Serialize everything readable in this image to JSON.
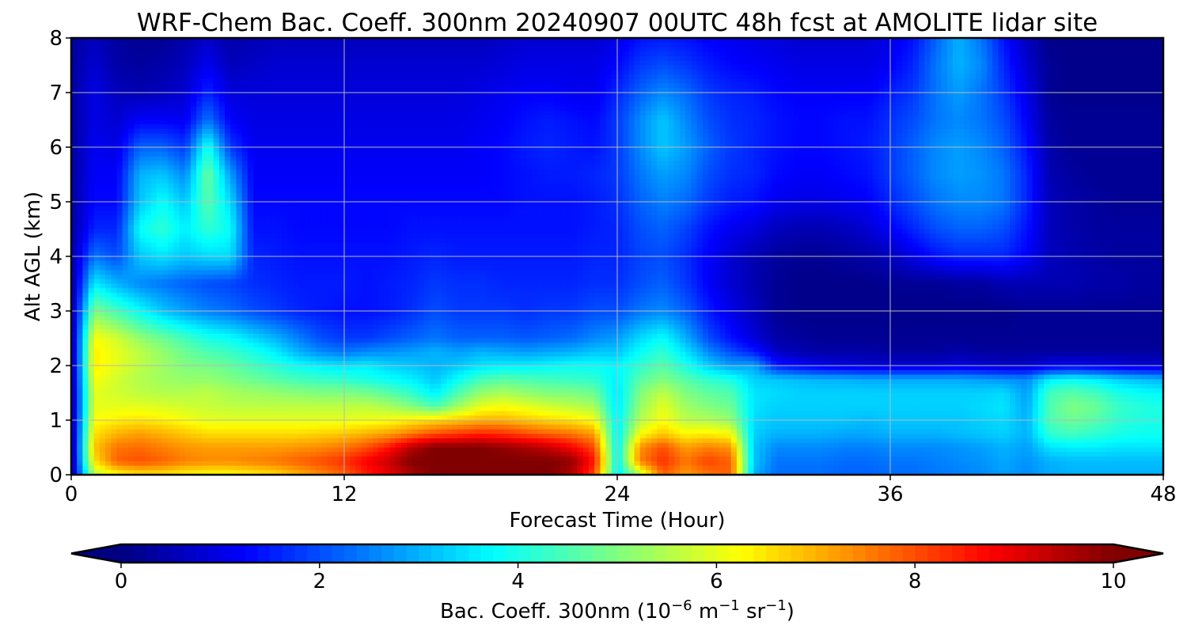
{
  "chart_data": {
    "type": "heatmap",
    "title": "WRF-Chem Bac. Coeff. 300nm  20240907 00UTC 48h fcst at AMOLITE lidar site",
    "xlabel": "Forecast Time (Hour)",
    "ylabel": "Alt AGL (km)",
    "xlim": [
      0,
      48
    ],
    "ylim": [
      0,
      8
    ],
    "xticks": [
      "0",
      "12",
      "24",
      "36",
      "48"
    ],
    "yticks": [
      "0",
      "1",
      "2",
      "3",
      "4",
      "5",
      "6",
      "7",
      "8"
    ],
    "grid": true,
    "colormap": "jet",
    "colorbar": {
      "label_main": "Bac. Coeff. 300nm  (10",
      "label_exp1": "−6",
      "label_mid": " m",
      "label_exp2": "−1",
      "label_mid2": " sr",
      "label_exp3": "−1",
      "label_end": ")",
      "min": 0,
      "max": 10,
      "ticks": [
        "0",
        "2",
        "4",
        "6",
        "8",
        "10"
      ],
      "extend": "both"
    },
    "altitudes_km": [
      0,
      0.25,
      0.5,
      0.75,
      1,
      1.25,
      1.5,
      1.75,
      2,
      2.25,
      2.5,
      3,
      3.5,
      4,
      4.5,
      5,
      5.5,
      6,
      6.5,
      7,
      7.5,
      8
    ],
    "hours": [
      0,
      1,
      2,
      3,
      4,
      5,
      6,
      7,
      8,
      9,
      10,
      11,
      12,
      13,
      14,
      15,
      16,
      17,
      18,
      19,
      20,
      21,
      22,
      23,
      24,
      25,
      26,
      27,
      28,
      29,
      30,
      31,
      32,
      33,
      34,
      35,
      36,
      37,
      38,
      39,
      40,
      41,
      42,
      43,
      44,
      45,
      46,
      47,
      48
    ],
    "values": [
      [
        0.2,
        5.5,
        6.2,
        6.5,
        6.5,
        6.3,
        6.2,
        6.2,
        6.4,
        6.6,
        7.0,
        7.4,
        7.8,
        8.5,
        9.0,
        9.6,
        10.0,
        10.0,
        10.0,
        10.0,
        10.0,
        10.0,
        9.5,
        8.0,
        3.5,
        5.5,
        7.8,
        7.2,
        7.6,
        7.8,
        3.0,
        2.3,
        2.3,
        2.3,
        2.2,
        2.2,
        2.3,
        2.3,
        2.4,
        2.5,
        2.6,
        2.8,
        2.6,
        2.9,
        3.0,
        3.0,
        3.0,
        3.0,
        3.0
      ],
      [
        0.2,
        6.5,
        7.8,
        8.0,
        7.8,
        7.5,
        7.4,
        7.4,
        7.5,
        7.6,
        7.8,
        8.0,
        8.3,
        8.8,
        9.3,
        10.0,
        10.0,
        10.0,
        10.0,
        10.0,
        10.0,
        10.0,
        9.8,
        8.5,
        3.6,
        7.5,
        8.3,
        7.6,
        8.1,
        7.8,
        3.2,
        2.4,
        2.4,
        2.4,
        2.3,
        2.3,
        2.4,
        2.4,
        2.5,
        2.6,
        2.7,
        2.9,
        2.7,
        3.0,
        3.1,
        3.1,
        3.1,
        3.1,
        3.1
      ],
      [
        0.2,
        6.8,
        7.6,
        7.7,
        7.5,
        7.3,
        7.2,
        7.2,
        7.2,
        7.2,
        7.3,
        7.4,
        7.6,
        8.0,
        8.6,
        9.5,
        10.0,
        10.0,
        10.0,
        9.8,
        9.6,
        9.3,
        8.8,
        8.0,
        3.6,
        7.3,
        8.0,
        7.2,
        7.5,
        7.3,
        3.2,
        2.6,
        2.6,
        2.6,
        2.5,
        2.5,
        2.6,
        2.6,
        2.6,
        2.7,
        2.8,
        3.0,
        2.8,
        3.5,
        3.6,
        3.6,
        3.5,
        3.5,
        3.5
      ],
      [
        0.2,
        6.5,
        7.0,
        7.2,
        7.0,
        6.8,
        6.6,
        6.6,
        6.6,
        6.6,
        6.6,
        6.7,
        6.8,
        7.0,
        7.2,
        7.6,
        8.0,
        8.2,
        8.4,
        8.3,
        8.0,
        7.8,
        7.6,
        7.2,
        3.6,
        6.2,
        6.8,
        6.3,
        6.4,
        6.2,
        3.3,
        3.0,
        3.0,
        3.0,
        2.9,
        2.9,
        3.0,
        3.0,
        3.0,
        3.1,
        3.2,
        3.3,
        3.0,
        4.2,
        4.4,
        4.2,
        4.0,
        3.9,
        3.9
      ],
      [
        0.2,
        6.2,
        6.4,
        6.5,
        6.4,
        6.2,
        6.0,
        6.0,
        6.0,
        6.0,
        6.0,
        6.0,
        6.0,
        6.1,
        6.2,
        6.4,
        6.6,
        6.8,
        7.0,
        7.0,
        6.8,
        6.6,
        6.5,
        6.2,
        3.6,
        5.5,
        6.2,
        5.6,
        5.5,
        5.2,
        3.4,
        3.2,
        3.2,
        3.2,
        3.2,
        3.1,
        3.2,
        3.2,
        3.2,
        3.2,
        3.3,
        3.4,
        3.0,
        4.5,
        4.8,
        4.6,
        4.2,
        4.0,
        4.0
      ],
      [
        0.2,
        6.0,
        6.0,
        6.0,
        5.9,
        5.8,
        5.7,
        5.6,
        5.6,
        5.6,
        5.6,
        5.6,
        5.6,
        5.6,
        5.4,
        5.0,
        4.5,
        5.3,
        6.0,
        6.2,
        6.0,
        5.8,
        5.6,
        5.4,
        3.5,
        5.2,
        6.0,
        5.3,
        5.0,
        4.8,
        3.5,
        3.3,
        3.3,
        3.3,
        3.3,
        3.3,
        3.3,
        3.3,
        3.3,
        3.3,
        3.4,
        3.5,
        2.9,
        4.5,
        5.0,
        4.8,
        4.3,
        4.1,
        4.0
      ],
      [
        0.2,
        6.0,
        5.8,
        5.6,
        5.5,
        5.5,
        5.6,
        5.4,
        5.3,
        5.2,
        5.1,
        5.0,
        5.0,
        4.9,
        4.6,
        4.2,
        3.6,
        4.5,
        5.2,
        5.4,
        5.2,
        5.0,
        5.0,
        4.8,
        3.5,
        5.0,
        5.6,
        5.0,
        4.7,
        4.5,
        3.5,
        3.4,
        3.3,
        3.3,
        3.3,
        3.3,
        3.3,
        3.3,
        3.3,
        3.3,
        3.3,
        3.4,
        2.8,
        4.4,
        4.6,
        4.4,
        4.0,
        3.8,
        3.7
      ],
      [
        0.2,
        6.2,
        5.8,
        5.5,
        5.3,
        5.2,
        5.2,
        5.0,
        4.8,
        4.6,
        4.4,
        4.3,
        4.2,
        4.0,
        3.8,
        3.6,
        3.2,
        3.8,
        4.4,
        4.6,
        4.5,
        4.4,
        4.3,
        4.2,
        3.6,
        4.6,
        5.0,
        4.6,
        4.2,
        4.0,
        3.3,
        3.2,
        3.1,
        3.0,
        3.0,
        2.9,
        2.9,
        2.9,
        2.9,
        2.9,
        2.8,
        2.7,
        2.6,
        3.6,
        3.8,
        3.6,
        3.3,
        3.1,
        3.0
      ],
      [
        0.2,
        6.4,
        6.0,
        5.6,
        5.3,
        5.0,
        4.9,
        4.7,
        4.4,
        4.1,
        3.8,
        3.6,
        3.5,
        3.6,
        3.3,
        3.2,
        3.0,
        3.2,
        3.5,
        3.6,
        3.6,
        3.7,
        3.8,
        3.8,
        3.7,
        4.2,
        4.6,
        4.0,
        3.3,
        2.8,
        2.9,
        1.5,
        1.2,
        1.0,
        0.9,
        0.8,
        0.8,
        0.8,
        0.8,
        0.9,
        0.8,
        0.7,
        0.7,
        1.0,
        1.1,
        1.0,
        0.9,
        0.8,
        0.8
      ],
      [
        0.2,
        6.4,
        6.0,
        5.6,
        5.2,
        4.8,
        4.5,
        4.3,
        4.0,
        3.6,
        3.0,
        2.6,
        2.4,
        2.6,
        2.7,
        2.8,
        3.0,
        2.8,
        3.0,
        2.9,
        2.8,
        2.9,
        3.0,
        3.2,
        3.2,
        3.8,
        4.2,
        3.5,
        2.6,
        2.0,
        1.5,
        0.7,
        0.5,
        0.4,
        0.4,
        0.4,
        0.3,
        0.3,
        0.3,
        0.4,
        0.3,
        0.3,
        0.3,
        0.3,
        0.3,
        0.3,
        0.3,
        0.3,
        0.3
      ],
      [
        0.2,
        6.2,
        5.8,
        5.2,
        4.8,
        4.4,
        4.0,
        3.8,
        3.4,
        3.0,
        2.5,
        2.0,
        1.8,
        1.8,
        2.0,
        2.2,
        2.4,
        2.2,
        2.2,
        2.2,
        2.1,
        2.2,
        2.3,
        2.6,
        2.8,
        3.4,
        3.8,
        3.0,
        2.0,
        1.4,
        0.9,
        0.4,
        0.3,
        0.2,
        0.2,
        0.2,
        0.2,
        0.2,
        0.2,
        0.2,
        0.2,
        0.2,
        0.2,
        0.2,
        0.2,
        0.2,
        0.2,
        0.2,
        0.2
      ],
      [
        0.2,
        5.0,
        4.4,
        3.8,
        3.2,
        2.8,
        2.5,
        2.3,
        2.0,
        1.8,
        1.6,
        1.5,
        1.4,
        1.4,
        1.5,
        1.7,
        2.0,
        1.8,
        1.8,
        1.8,
        1.7,
        1.8,
        1.8,
        2.0,
        2.0,
        2.4,
        2.6,
        2.2,
        1.5,
        1.0,
        0.6,
        0.2,
        0.1,
        0.1,
        0.1,
        0.1,
        0.1,
        0.1,
        0.1,
        0.1,
        0.1,
        0.1,
        0.2,
        0.2,
        0.2,
        0.2,
        0.2,
        0.2,
        0.2
      ],
      [
        0.2,
        3.6,
        3.0,
        2.6,
        2.4,
        2.2,
        2.0,
        1.9,
        1.7,
        1.6,
        1.5,
        1.5,
        1.5,
        1.4,
        1.5,
        1.6,
        1.8,
        1.7,
        1.7,
        1.6,
        1.6,
        1.6,
        1.6,
        1.7,
        1.7,
        2.0,
        2.2,
        1.8,
        1.2,
        0.8,
        0.5,
        0.2,
        0.1,
        0.1,
        0.1,
        0.1,
        0.2,
        0.2,
        0.2,
        0.3,
        0.3,
        0.5,
        0.5,
        0.5,
        0.5,
        0.4,
        0.4,
        0.3,
        0.3
      ],
      [
        0.3,
        2.4,
        2.0,
        3.2,
        3.5,
        3.2,
        3.4,
        3.4,
        1.6,
        1.5,
        1.4,
        1.4,
        1.4,
        1.4,
        1.4,
        1.5,
        1.6,
        1.5,
        1.5,
        1.5,
        1.5,
        1.5,
        1.5,
        1.6,
        1.6,
        1.9,
        2.0,
        1.7,
        1.2,
        0.8,
        0.5,
        0.3,
        0.2,
        0.2,
        0.3,
        0.4,
        0.6,
        1.0,
        1.4,
        1.6,
        1.6,
        1.6,
        1.2,
        0.6,
        0.5,
        0.4,
        0.3,
        0.3,
        0.3
      ],
      [
        0.3,
        1.6,
        1.6,
        3.8,
        4.2,
        3.6,
        4.2,
        3.8,
        1.4,
        1.4,
        1.3,
        1.3,
        1.3,
        1.3,
        1.3,
        1.4,
        1.4,
        1.4,
        1.4,
        1.4,
        1.4,
        1.4,
        1.4,
        1.5,
        1.6,
        2.0,
        2.2,
        1.9,
        1.4,
        1.1,
        0.9,
        0.6,
        0.5,
        0.5,
        0.6,
        0.8,
        1.2,
        1.6,
        2.0,
        2.2,
        2.2,
        2.0,
        1.4,
        0.6,
        0.4,
        0.3,
        0.3,
        0.3,
        0.3
      ],
      [
        0.3,
        1.3,
        1.3,
        3.2,
        3.8,
        3.2,
        4.6,
        3.4,
        1.3,
        1.3,
        1.3,
        1.3,
        1.3,
        1.3,
        1.3,
        1.3,
        1.3,
        1.3,
        1.3,
        1.3,
        1.4,
        1.4,
        1.4,
        1.5,
        1.7,
        2.2,
        2.5,
        2.3,
        1.8,
        1.5,
        1.4,
        1.1,
        1.0,
        1.0,
        1.1,
        1.2,
        1.6,
        2.0,
        2.4,
        2.6,
        2.6,
        2.4,
        1.6,
        0.6,
        0.4,
        0.3,
        0.2,
        0.2,
        0.2
      ],
      [
        0.3,
        1.2,
        1.2,
        3.0,
        3.2,
        2.6,
        4.8,
        2.8,
        1.2,
        1.2,
        1.2,
        1.2,
        1.2,
        1.2,
        1.2,
        1.2,
        1.2,
        1.2,
        1.2,
        1.3,
        1.4,
        1.5,
        1.5,
        1.6,
        1.8,
        2.4,
        2.8,
        2.6,
        2.0,
        1.7,
        1.6,
        1.3,
        1.2,
        1.2,
        1.3,
        1.4,
        1.8,
        2.2,
        2.6,
        2.8,
        2.7,
        2.4,
        1.6,
        0.5,
        0.3,
        0.2,
        0.2,
        0.2,
        0.2
      ],
      [
        0.3,
        1.1,
        1.0,
        2.2,
        2.2,
        1.8,
        4.0,
        1.8,
        1.1,
        1.1,
        1.1,
        1.1,
        1.1,
        1.1,
        1.1,
        1.1,
        1.1,
        1.1,
        1.2,
        1.3,
        1.5,
        1.6,
        1.5,
        1.4,
        1.8,
        2.6,
        3.2,
        2.8,
        2.2,
        1.8,
        1.6,
        1.4,
        1.3,
        1.3,
        1.4,
        1.5,
        1.8,
        2.2,
        2.6,
        2.8,
        2.6,
        2.2,
        1.4,
        0.4,
        0.2,
        0.2,
        0.2,
        0.2,
        0.2
      ],
      [
        0.3,
        1.0,
        0.8,
        1.2,
        1.2,
        1.1,
        2.4,
        1.2,
        1.0,
        1.0,
        1.0,
        1.0,
        1.0,
        1.0,
        1.0,
        1.0,
        1.0,
        1.0,
        1.1,
        1.2,
        1.4,
        1.5,
        1.4,
        1.3,
        1.8,
        2.6,
        3.2,
        2.6,
        2.0,
        1.7,
        1.6,
        1.4,
        1.3,
        1.3,
        1.4,
        1.4,
        1.7,
        2.0,
        2.4,
        2.6,
        2.4,
        2.0,
        1.2,
        0.3,
        0.2,
        0.2,
        0.2,
        0.2,
        0.2
      ],
      [
        0.3,
        1.0,
        0.6,
        0.5,
        0.6,
        0.8,
        1.6,
        0.9,
        0.9,
        0.9,
        0.9,
        0.9,
        0.9,
        0.9,
        0.9,
        0.9,
        0.9,
        0.9,
        1.0,
        1.1,
        1.2,
        1.2,
        1.1,
        1.1,
        1.6,
        2.2,
        2.6,
        2.3,
        1.8,
        1.6,
        1.5,
        1.3,
        1.2,
        1.2,
        1.2,
        1.2,
        1.5,
        1.8,
        2.4,
        2.8,
        2.4,
        1.8,
        1.0,
        0.2,
        0.1,
        0.1,
        0.1,
        0.1,
        0.1
      ],
      [
        0.3,
        0.8,
        0.4,
        0.3,
        0.4,
        0.6,
        1.1,
        0.6,
        0.7,
        0.8,
        0.8,
        0.8,
        0.8,
        0.8,
        0.8,
        0.8,
        0.8,
        0.8,
        0.8,
        0.9,
        1.0,
        1.0,
        1.0,
        1.0,
        1.3,
        1.8,
        2.0,
        1.8,
        1.5,
        1.3,
        1.2,
        1.1,
        1.0,
        1.0,
        1.0,
        1.0,
        1.2,
        1.6,
        2.4,
        3.0,
        2.6,
        1.6,
        0.8,
        0.2,
        0.1,
        0.1,
        0.1,
        0.1,
        0.1
      ],
      [
        0.3,
        0.6,
        0.3,
        0.2,
        0.2,
        0.4,
        0.7,
        0.4,
        0.5,
        0.6,
        0.6,
        0.6,
        0.6,
        0.6,
        0.6,
        0.6,
        0.6,
        0.6,
        0.6,
        0.7,
        0.8,
        0.8,
        0.8,
        0.8,
        1.0,
        1.4,
        1.5,
        1.4,
        1.2,
        1.1,
        1.0,
        0.9,
        0.8,
        0.8,
        0.8,
        0.8,
        1.0,
        1.4,
        2.2,
        3.0,
        2.4,
        1.4,
        0.6,
        0.1,
        0.1,
        0.1,
        0.1,
        0.1,
        0.1
      ]
    ]
  }
}
